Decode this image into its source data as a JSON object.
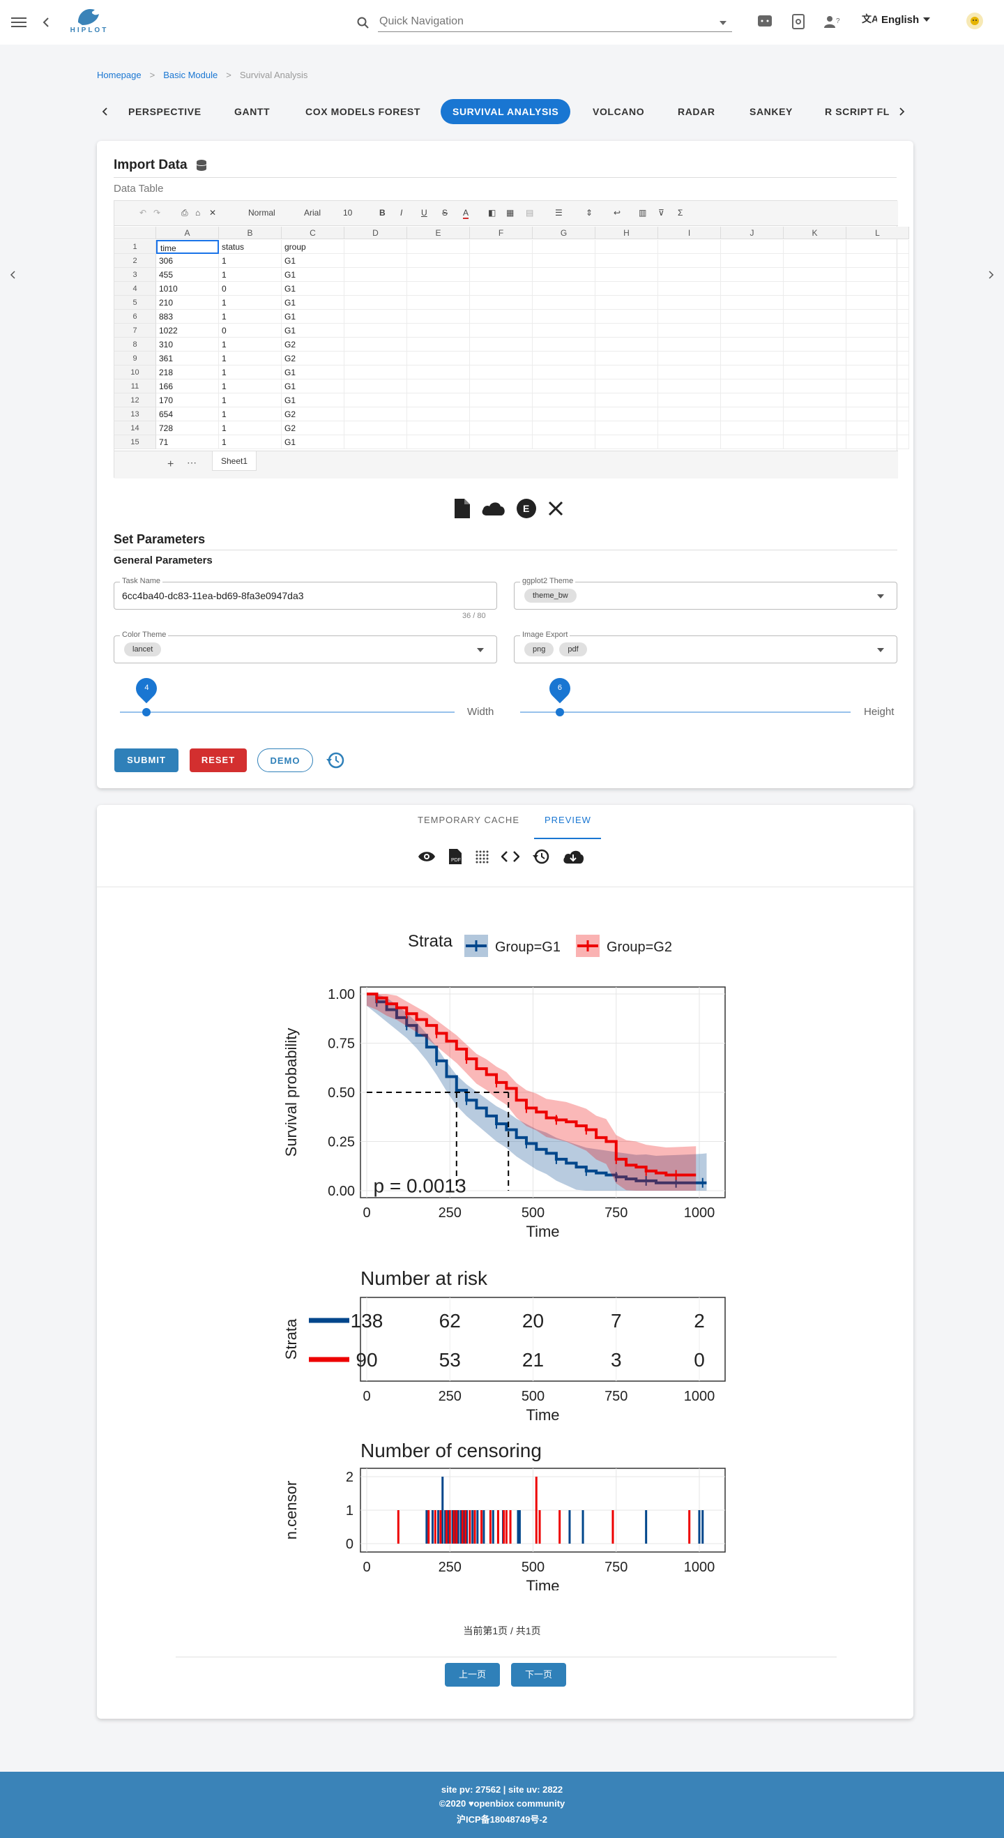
{
  "app": {
    "brand": "HIPLOT"
  },
  "search": {
    "placeholder": "Quick Navigation"
  },
  "header": {
    "language": "English"
  },
  "breadcrumb": {
    "home": "Homepage",
    "module": "Basic Module",
    "current": "Survival Analysis"
  },
  "tabs": [
    "PERSPECTIVE",
    "GANTT",
    "COX MODELS FOREST",
    "SURVIVAL ANALYSIS",
    "VOLCANO",
    "RADAR",
    "SANKEY",
    "R SCRIPT FL"
  ],
  "import": {
    "title": "Import Data",
    "subtitle": "Data Table"
  },
  "sheet": {
    "toolbar": {
      "style": "Normal",
      "font": "Arial",
      "size": "10"
    },
    "columns": [
      "A",
      "B",
      "C",
      "D",
      "E",
      "F",
      "G",
      "H",
      "I",
      "J",
      "K",
      "L"
    ],
    "rows": [
      [
        "time",
        "status",
        "group"
      ],
      [
        "306",
        "1",
        "G1"
      ],
      [
        "455",
        "1",
        "G1"
      ],
      [
        "1010",
        "0",
        "G1"
      ],
      [
        "210",
        "1",
        "G1"
      ],
      [
        "883",
        "1",
        "G1"
      ],
      [
        "1022",
        "0",
        "G1"
      ],
      [
        "310",
        "1",
        "G2"
      ],
      [
        "361",
        "1",
        "G2"
      ],
      [
        "218",
        "1",
        "G1"
      ],
      [
        "166",
        "1",
        "G1"
      ],
      [
        "170",
        "1",
        "G1"
      ],
      [
        "654",
        "1",
        "G2"
      ],
      [
        "728",
        "1",
        "G2"
      ],
      [
        "71",
        "1",
        "G1"
      ]
    ],
    "row_numbers": [
      "1",
      "2",
      "3",
      "4",
      "5",
      "6",
      "7",
      "8",
      "9",
      "10",
      "11",
      "12",
      "13",
      "14",
      "15"
    ],
    "sheet_tab": "Sheet1"
  },
  "params": {
    "title": "Set Parameters",
    "general": "General Parameters",
    "task_name_label": "Task Name",
    "task_name_value": "6cc4ba40-dc83-11ea-bd69-8fa3e0947da3",
    "task_name_counter": "36 / 80",
    "theme_label": "ggplot2 Theme",
    "theme_value": "theme_bw",
    "color_label": "Color Theme",
    "color_value": "lancet",
    "export_label": "Image Export",
    "export_values": [
      "png",
      "pdf"
    ],
    "width_label": "Width",
    "width_value": "4",
    "width_fraction": 0.08,
    "height_label": "Height",
    "height_value": "6",
    "height_fraction": 0.12
  },
  "actions": {
    "submit": "SUBMIT",
    "reset": "RESET",
    "demo": "DEMO"
  },
  "output_tabs": {
    "cache": "TEMPORARY CACHE",
    "preview": "PREVIEW"
  },
  "pager": {
    "status": "当前第1页 / 共1页",
    "prev": "上一页",
    "next": "下一页"
  },
  "footer": {
    "stats": "site pv: 27562 | site uv: 2822",
    "copyright": "©2020 ♥openbiox community",
    "icp": "沪ICP备18048749号-2"
  },
  "colors": {
    "primary": "#1976d2",
    "g1": "#00468B",
    "g2": "#ED0000",
    "reset": "#d32f2f",
    "footer": "#3a83b8"
  },
  "chart_data": [
    {
      "type": "line",
      "legend": {
        "title": "Strata",
        "entries": [
          "Group=G1",
          "Group=G2"
        ],
        "placement": "top"
      },
      "xlabel": "Time",
      "ylabel": "Survival probability",
      "xlim": [
        0,
        1022
      ],
      "ylim": [
        0,
        1
      ],
      "x_ticks": [
        0,
        250,
        500,
        750,
        1000
      ],
      "y_ticks": [
        "0.00",
        "0.25",
        "0.50",
        "0.75",
        "1.00"
      ],
      "annotation": "p = 0.0013",
      "median_survival": {
        "G1": 270,
        "G2": 426
      },
      "series": [
        {
          "name": "Group=G1",
          "x": [
            0,
            30,
            60,
            90,
            120,
            150,
            180,
            210,
            240,
            270,
            300,
            330,
            360,
            390,
            420,
            450,
            480,
            510,
            540,
            570,
            600,
            630,
            660,
            690,
            720,
            750,
            780,
            810,
            840,
            870,
            900,
            930,
            960,
            990,
            1010,
            1022
          ],
          "y": [
            1.0,
            0.96,
            0.92,
            0.88,
            0.84,
            0.79,
            0.73,
            0.66,
            0.58,
            0.51,
            0.46,
            0.42,
            0.38,
            0.34,
            0.31,
            0.27,
            0.24,
            0.21,
            0.19,
            0.16,
            0.14,
            0.12,
            0.1,
            0.09,
            0.08,
            0.07,
            0.06,
            0.05,
            0.05,
            0.04,
            0.04,
            0.04,
            0.04,
            0.04,
            0.04,
            0.04
          ]
        },
        {
          "name": "Group=G2",
          "x": [
            0,
            30,
            60,
            90,
            120,
            150,
            180,
            210,
            240,
            270,
            300,
            330,
            360,
            390,
            420,
            450,
            480,
            510,
            540,
            570,
            600,
            630,
            660,
            690,
            720,
            750,
            780,
            810,
            840,
            870,
            900,
            930,
            960,
            990
          ],
          "y": [
            1.0,
            0.98,
            0.95,
            0.93,
            0.9,
            0.87,
            0.84,
            0.8,
            0.76,
            0.72,
            0.67,
            0.62,
            0.59,
            0.55,
            0.52,
            0.46,
            0.42,
            0.4,
            0.37,
            0.36,
            0.35,
            0.33,
            0.31,
            0.27,
            0.25,
            0.16,
            0.13,
            0.12,
            0.1,
            0.09,
            0.08,
            0.08,
            0.08,
            0.08
          ]
        }
      ]
    },
    {
      "type": "table",
      "title": "Number at risk",
      "ylabel": "Strata",
      "xlabel": "Time",
      "x_ticks": [
        0,
        250,
        500,
        750,
        1000
      ],
      "series": [
        {
          "name": "Group=G1",
          "values": [
            138,
            62,
            20,
            7,
            2
          ]
        },
        {
          "name": "Group=G2",
          "values": [
            90,
            53,
            21,
            3,
            0
          ]
        }
      ]
    },
    {
      "type": "bar",
      "title": "Number of censoring",
      "ylabel": "n.censor",
      "xlabel": "Time",
      "x_ticks": [
        0,
        250,
        500,
        750,
        1000
      ],
      "y_ticks": [
        "0",
        "1",
        "2"
      ],
      "series": [
        {
          "name": "Group=G1",
          "x": [
            180,
            198,
            215,
            228,
            236,
            245,
            258,
            266,
            275,
            283,
            292,
            301,
            318,
            333,
            352,
            380,
            410,
            455,
            460,
            610,
            650,
            840,
            1000,
            1010
          ],
          "values": [
            1,
            1,
            1,
            2,
            1,
            1,
            1,
            1,
            1,
            1,
            1,
            1,
            1,
            1,
            1,
            1,
            1,
            1,
            1,
            1,
            1,
            1,
            1,
            1
          ]
        },
        {
          "name": "Group=G2",
          "x": [
            95,
            186,
            206,
            222,
            240,
            250,
            262,
            270,
            288,
            297,
            310,
            325,
            345,
            372,
            395,
            412,
            420,
            432,
            510,
            520,
            580,
            740,
            970
          ],
          "values": [
            1,
            1,
            1,
            1,
            1,
            1,
            1,
            1,
            1,
            1,
            1,
            1,
            1,
            1,
            1,
            1,
            1,
            1,
            2,
            1,
            1,
            1,
            1
          ]
        }
      ]
    }
  ]
}
